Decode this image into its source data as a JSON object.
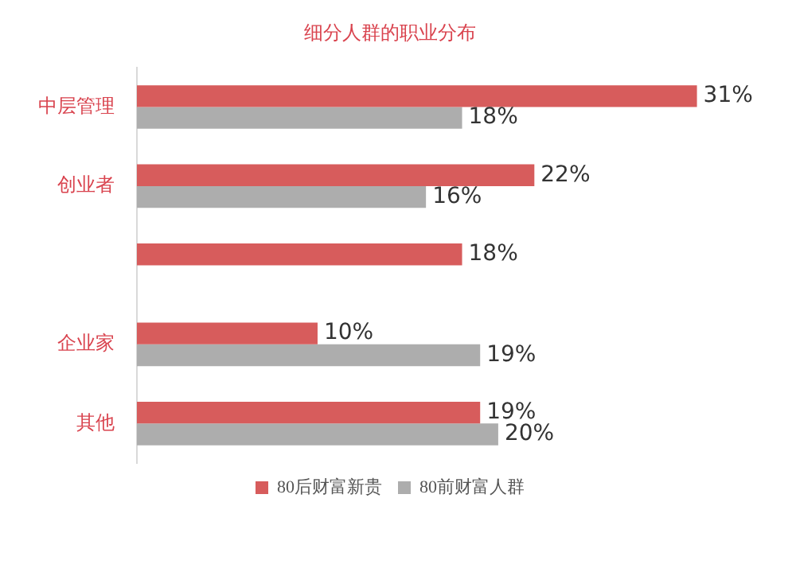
{
  "chart_data": {
    "type": "bar",
    "orientation": "horizontal",
    "title": "细分人群的职业分布",
    "categories": [
      "中层管理",
      "创业者",
      null,
      "企业家",
      "其他"
    ],
    "series": [
      {
        "name": "80后财富新贵",
        "color": "#d75c5c",
        "values": [
          31,
          22,
          18,
          10,
          19
        ],
        "value_labels": [
          "31%",
          "22%",
          "18%",
          "10%",
          "19%"
        ]
      },
      {
        "name": "80前财富人群",
        "color": "#adadad",
        "values": [
          18,
          16,
          null,
          19,
          20
        ],
        "value_labels": [
          "18%",
          "16%",
          null,
          "19%",
          "20%"
        ]
      }
    ],
    "legend": "bottom",
    "grid": false
  }
}
